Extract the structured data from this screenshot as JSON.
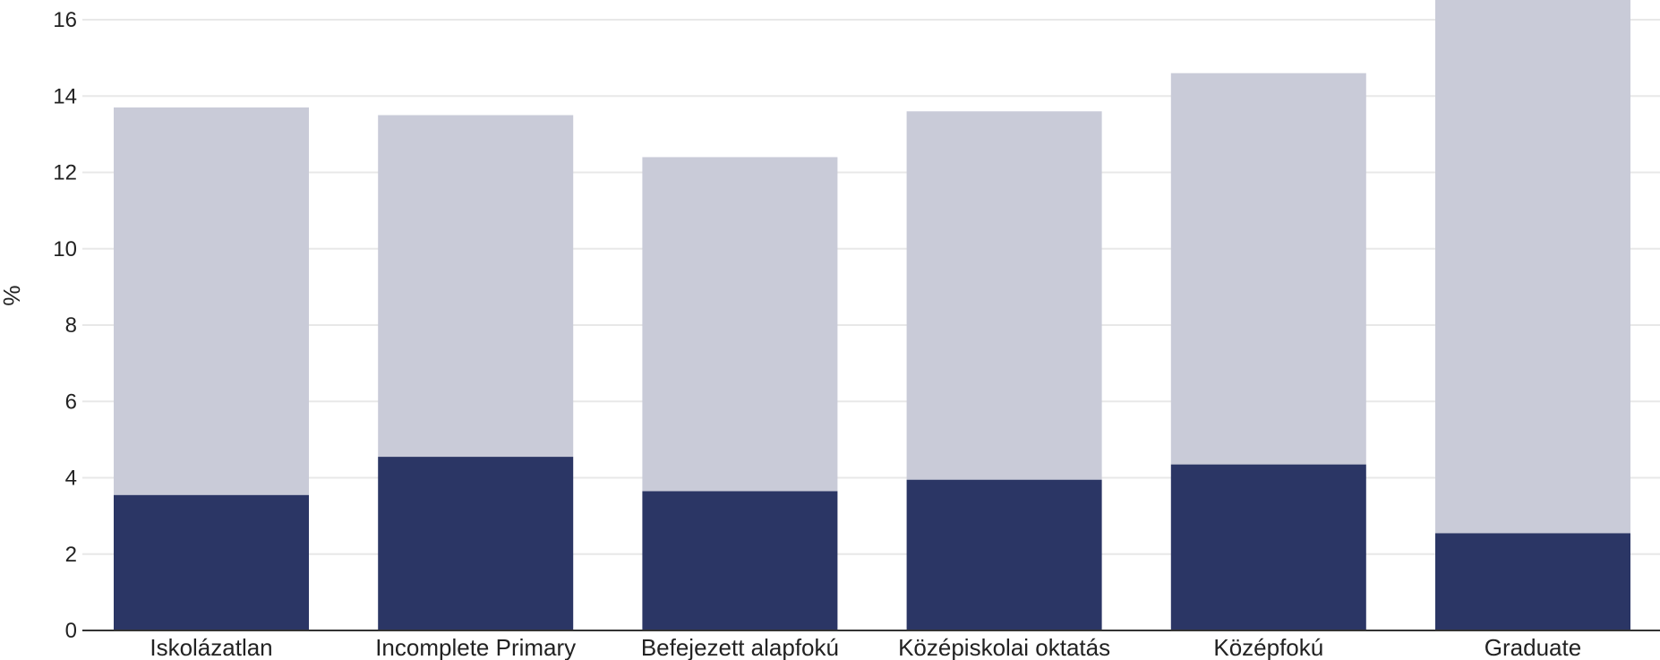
{
  "chart_data": {
    "type": "bar",
    "stacked": true,
    "title": "",
    "xlabel": "",
    "ylabel": "%",
    "ylim": [
      0,
      16
    ],
    "yticks": [
      0,
      2,
      4,
      6,
      8,
      10,
      12,
      14,
      16
    ],
    "grid": true,
    "legend": "none",
    "categories": [
      "Iskolázatlan",
      "Incomplete Primary",
      "Befejezett alapfokú",
      "Középiskolai oktatás",
      "Középfokú",
      "Graduate"
    ],
    "series": [
      {
        "color": "#2b3665",
        "values": [
          3.55,
          4.55,
          3.65,
          3.95,
          4.35,
          2.55
        ]
      },
      {
        "color": "#c9cbd8",
        "values": [
          10.15,
          8.95,
          8.75,
          9.65,
          10.25,
          14.45
        ]
      }
    ]
  }
}
